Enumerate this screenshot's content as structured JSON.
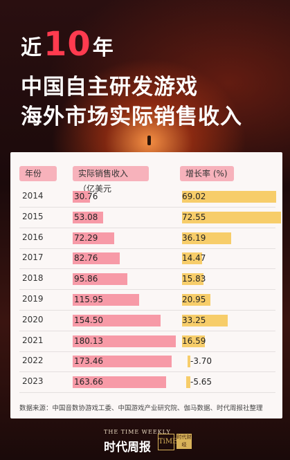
{
  "title": {
    "line1_pre": "近",
    "line1_num": "10",
    "line1_post": "年",
    "line2": "中国自主研发游戏",
    "line3": "海外市场实际销售收入"
  },
  "colors": {
    "accent_red": "#ff3b4f",
    "sales_bar": "#f79aa7",
    "growth_bar": "#f7cd6a",
    "header_pill": "#f7b2bb"
  },
  "chart_data": {
    "type": "table",
    "columns": [
      "年份",
      "实际销售收入（亿美元",
      "增长率 (%)"
    ],
    "years": [
      "2014",
      "2015",
      "2016",
      "2017",
      "2018",
      "2019",
      "2020",
      "2021",
      "2022",
      "2023"
    ],
    "sales_labels": [
      "30.76",
      "53.08",
      "72.29",
      "82.76",
      "95.86",
      "115.95",
      "154.50",
      "180.13",
      "173.46",
      "163.66"
    ],
    "sales": [
      30.76,
      53.08,
      72.29,
      82.76,
      95.86,
      115.95,
      154.5,
      180.13,
      173.46,
      163.66
    ],
    "growth_labels": [
      "69.02",
      "72.55",
      "36.19",
      "14.47",
      "15.83",
      "20.95",
      "33.25",
      "16.59",
      "-3.70",
      "-5.65"
    ],
    "growth": [
      69.02,
      72.55,
      36.19,
      14.47,
      15.83,
      20.95,
      33.25,
      16.59,
      -3.7,
      -5.65
    ]
  },
  "source": "数据来源：中国音数协游戏工委、中国游戏产业研究院、伽马数据、时代周报社整理",
  "footer": {
    "brand_en": "THE TIME WEEKLY",
    "brand_cn": "时代周报",
    "logo_mark": "TiME",
    "logo_sub": "时代财经"
  }
}
